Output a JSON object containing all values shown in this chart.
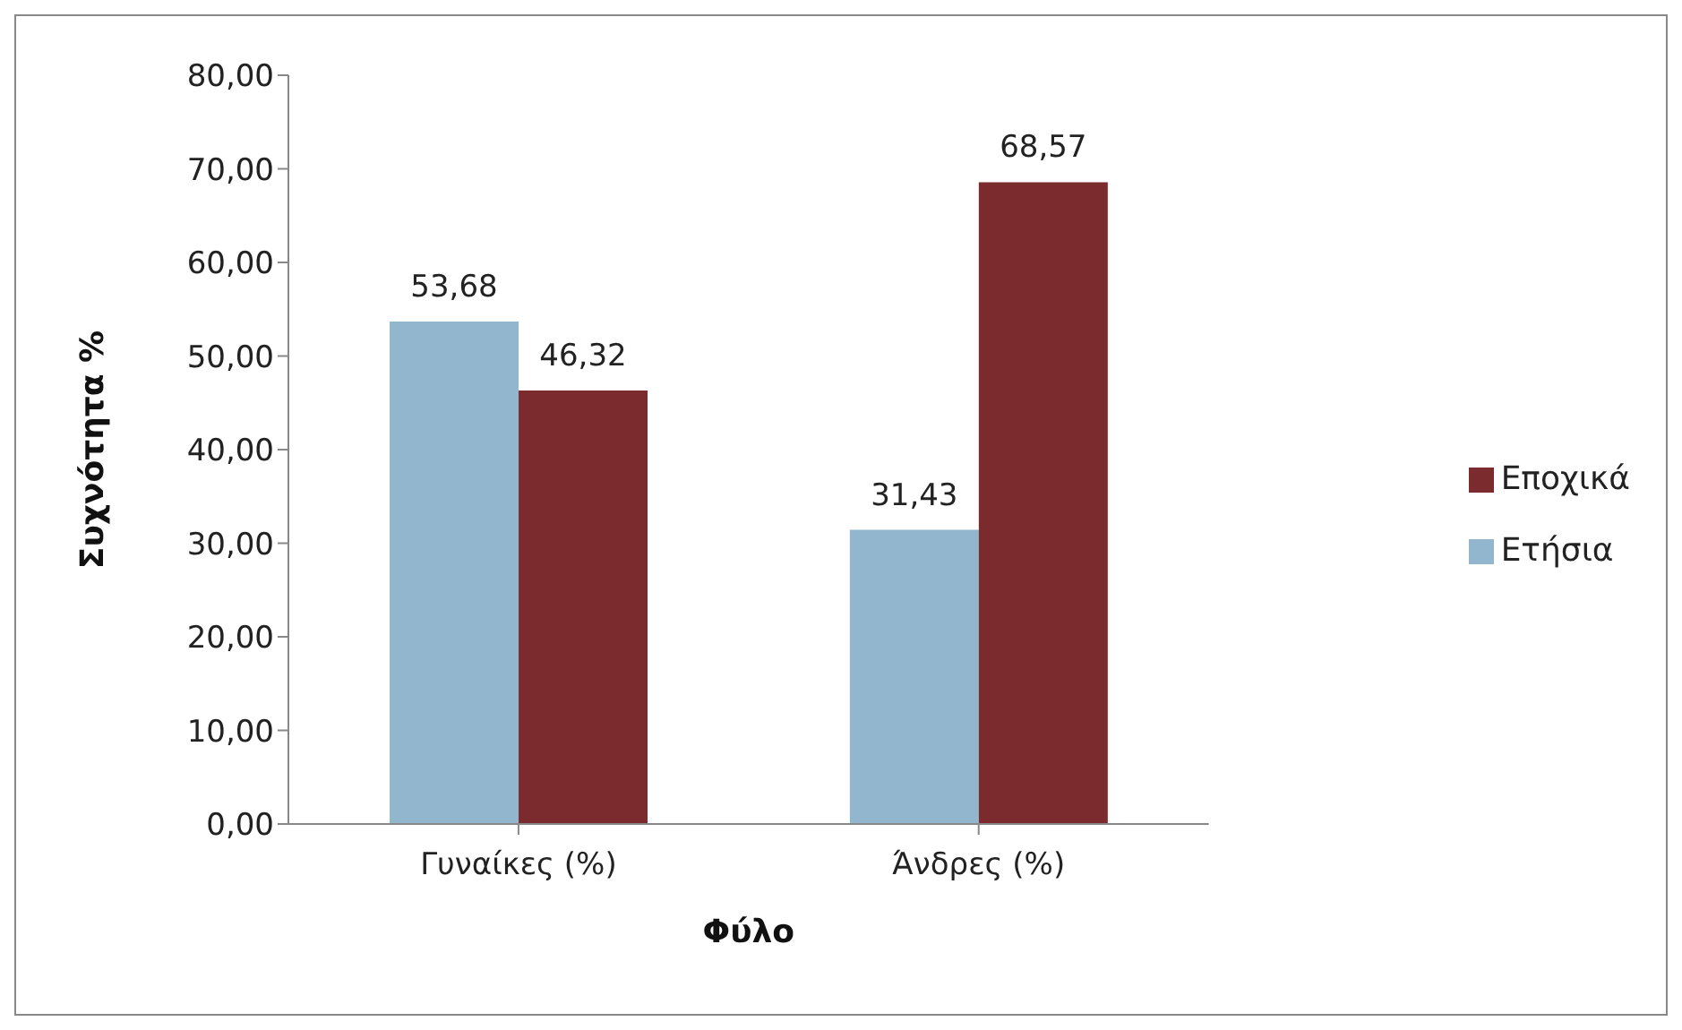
{
  "chart_data": {
    "type": "bar",
    "xlabel": "Φύλο",
    "ylabel": "Συχνότητα %",
    "categories": [
      "Γυναίκες (%)",
      "Άνδρες (%)"
    ],
    "series": [
      {
        "name": "Ετήσια",
        "color": "#93b6cf",
        "values": [
          53.68,
          31.43
        ],
        "value_labels": [
          "53,68",
          "31,43"
        ]
      },
      {
        "name": "Εποχικά",
        "color": "#7b2a2e",
        "values": [
          46.32,
          68.57
        ],
        "value_labels": [
          "46,32",
          "68,57"
        ]
      }
    ],
    "ylim": [
      0,
      80
    ],
    "yticks": [
      {
        "value": 0,
        "label": "0,00"
      },
      {
        "value": 10,
        "label": "10,00"
      },
      {
        "value": 20,
        "label": "20,00"
      },
      {
        "value": 30,
        "label": "30,00"
      },
      {
        "value": 40,
        "label": "40,00"
      },
      {
        "value": 50,
        "label": "50,00"
      },
      {
        "value": 60,
        "label": "60,00"
      },
      {
        "value": 70,
        "label": "70,00"
      },
      {
        "value": 80,
        "label": "80,00"
      }
    ],
    "grid": false,
    "legend": "right"
  }
}
